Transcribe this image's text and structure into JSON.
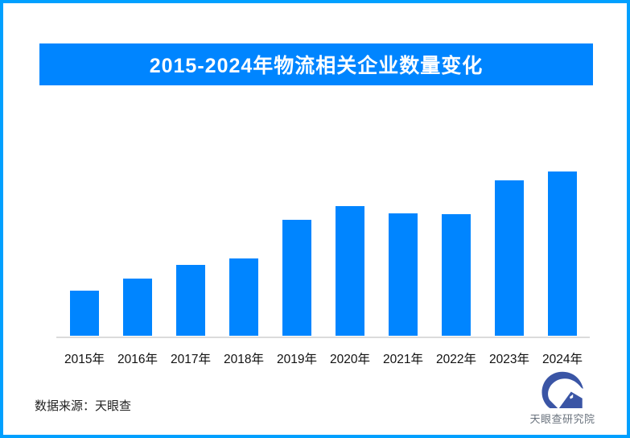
{
  "page": {
    "border_color": "#00A0FF",
    "background": "#FFFFFF"
  },
  "banner": {
    "title": "2015-2024年物流相关企业数量变化",
    "bg_color": "#0085FF",
    "text_color": "#FFFFFF"
  },
  "chart_data": {
    "type": "bar",
    "title": "2015-2024年物流相关企业数量变化",
    "categories": [
      "2015年",
      "2016年",
      "2017年",
      "2018年",
      "2019年",
      "2020年",
      "2021年",
      "2022年",
      "2023年",
      "2024年"
    ],
    "values": [
      27.5,
      34.8,
      43.1,
      47.1,
      70.6,
      78.9,
      74.5,
      74.0,
      94.6,
      100
    ],
    "value_note": "No numeric y-axis shown in image; values are relative heights with 2024 = 100",
    "ylim": [
      0,
      100
    ],
    "xlabel": "",
    "ylabel": "",
    "grid": false,
    "legend": false,
    "bar_color": "#0085FF",
    "axis_color": "#DBDBDB",
    "tick_label_color": "#111111"
  },
  "footer": {
    "source_label": "数据来源：天眼查"
  },
  "logo": {
    "icon": "tianyancha-eye-logo",
    "text": "天眼查研究院",
    "icon_color": "#3A55A5",
    "text_color": "#6A737E"
  }
}
